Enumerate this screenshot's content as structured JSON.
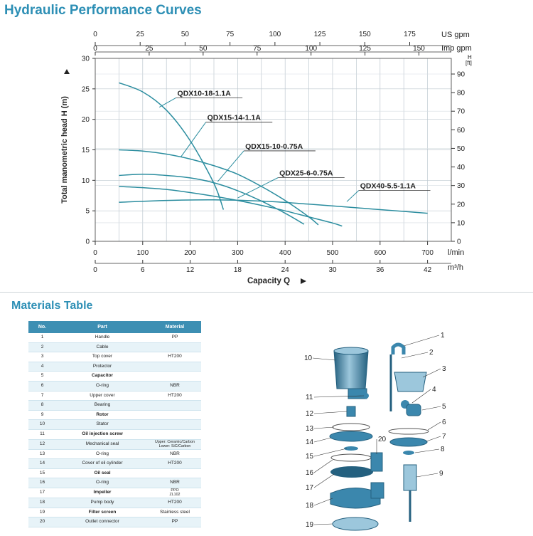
{
  "page": {
    "title": "Hydraulic Performance Curves",
    "materials_title": "Materials Table"
  },
  "chart_data": {
    "type": "line",
    "ylabel": "Total manometric head H (m)",
    "xlabel": "Capacity Q",
    "xlim": [
      0,
      750
    ],
    "ylim": [
      0,
      30
    ],
    "grid": true,
    "axes": {
      "left_ticks": [
        0,
        5,
        10,
        15,
        20,
        25,
        30
      ],
      "right_unit": "H\n[ft]",
      "right_ticks": [
        0,
        10,
        20,
        30,
        40,
        50,
        60,
        70,
        80,
        90
      ],
      "us_gpm_unit": "US gpm",
      "us_gpm_ticks": [
        0,
        25,
        50,
        75,
        100,
        125,
        150,
        175
      ],
      "imp_gpm_unit": "Imp gpm",
      "imp_gpm_ticks": [
        0,
        25,
        50,
        75,
        100,
        125,
        150
      ],
      "lmin_unit": "l/min",
      "lmin_ticks": [
        0,
        100,
        200,
        300,
        400,
        500,
        600,
        700
      ],
      "m3h_unit": "m³/h",
      "m3h_ticks": [
        0,
        6,
        12,
        18,
        24,
        30,
        36,
        42
      ]
    },
    "series": [
      {
        "name": "QDX10-18-1.1A",
        "x": [
          50,
          100,
          150,
          200,
          250,
          270
        ],
        "y": [
          26,
          24.5,
          21.5,
          16.5,
          9.5,
          5.2
        ],
        "label_x": 170,
        "label_y": 24,
        "anchor_x": 135,
        "anchor_y": 22
      },
      {
        "name": "QDX15-14-1.1A",
        "x": [
          50,
          100,
          150,
          200,
          250,
          300,
          350,
          400,
          450,
          470
        ],
        "y": [
          15,
          14.8,
          14.3,
          13.5,
          12.4,
          11,
          9,
          6.7,
          4,
          2.7
        ],
        "label_x": 233,
        "label_y": 20,
        "anchor_x": 180,
        "anchor_y": 13.8
      },
      {
        "name": "QDX15-10-0.75A",
        "x": [
          50,
          100,
          150,
          200,
          250,
          300,
          350,
          400,
          440
        ],
        "y": [
          10.8,
          11,
          10.8,
          10.4,
          9.6,
          8.3,
          6.6,
          4.6,
          2.8
        ],
        "label_x": 313,
        "label_y": 15.3,
        "anchor_x": 258,
        "anchor_y": 9.8
      },
      {
        "name": "QDX25-6-0.75A",
        "x": [
          50,
          100,
          150,
          200,
          250,
          300,
          350,
          400,
          450,
          500,
          520
        ],
        "y": [
          9,
          8.8,
          8.5,
          8,
          7.4,
          6.7,
          5.9,
          5,
          4,
          3,
          2.5
        ],
        "label_x": 385,
        "label_y": 10.9,
        "anchor_x": 300,
        "anchor_y": 7.1
      },
      {
        "name": "QDX40-5.5-1.1A",
        "x": [
          50,
          150,
          250,
          350,
          450,
          550,
          650,
          700
        ],
        "y": [
          6.4,
          6.7,
          6.8,
          6.6,
          6.1,
          5.5,
          4.9,
          4.6
        ],
        "label_x": 555,
        "label_y": 8.8,
        "anchor_x": 530,
        "anchor_y": 6.5
      }
    ]
  },
  "materials": {
    "headers": {
      "no": "No.",
      "part": "Part",
      "material": "Material"
    },
    "rows": [
      {
        "no": "1",
        "part": "Handle",
        "material": "PP"
      },
      {
        "no": "2",
        "part": "Cable",
        "material": ""
      },
      {
        "no": "3",
        "part": "Top cover",
        "material": "HT200"
      },
      {
        "no": "4",
        "part": "Protector",
        "material": ""
      },
      {
        "no": "5",
        "part": "Capacitor",
        "material": ""
      },
      {
        "no": "6",
        "part": "O-ring",
        "material": "NBR"
      },
      {
        "no": "7",
        "part": "Upper cover",
        "material": "HT200"
      },
      {
        "no": "8",
        "part": "Bearing",
        "material": ""
      },
      {
        "no": "9",
        "part": "Rotor",
        "material": ""
      },
      {
        "no": "10",
        "part": "Stator",
        "material": ""
      },
      {
        "no": "11",
        "part": "Oil injection screw",
        "material": ""
      },
      {
        "no": "12",
        "part": "Mechanical seal",
        "material": "Upper: Ceramic/Carbon\nLower: SiC/Carbon"
      },
      {
        "no": "13",
        "part": "O-ring",
        "material": "NBR"
      },
      {
        "no": "14",
        "part": "Cover of oil cylinder",
        "material": "HT200"
      },
      {
        "no": "15",
        "part": "Oil seal",
        "material": ""
      },
      {
        "no": "16",
        "part": "O-ring",
        "material": "NBR"
      },
      {
        "no": "17",
        "part": "Impeller",
        "material": "PPO\nZL102"
      },
      {
        "no": "18",
        "part": "Pump body",
        "material": "HT200"
      },
      {
        "no": "19",
        "part": "Filter screen",
        "material": "Stainless steel"
      },
      {
        "no": "20",
        "part": "Outlet connector",
        "material": "PP"
      }
    ]
  },
  "exploded_view": {
    "callouts": [
      "1",
      "2",
      "3",
      "4",
      "5",
      "6",
      "7",
      "8",
      "9",
      "10",
      "11",
      "12",
      "13",
      "14",
      "15",
      "16",
      "17",
      "18",
      "19",
      "20"
    ]
  }
}
